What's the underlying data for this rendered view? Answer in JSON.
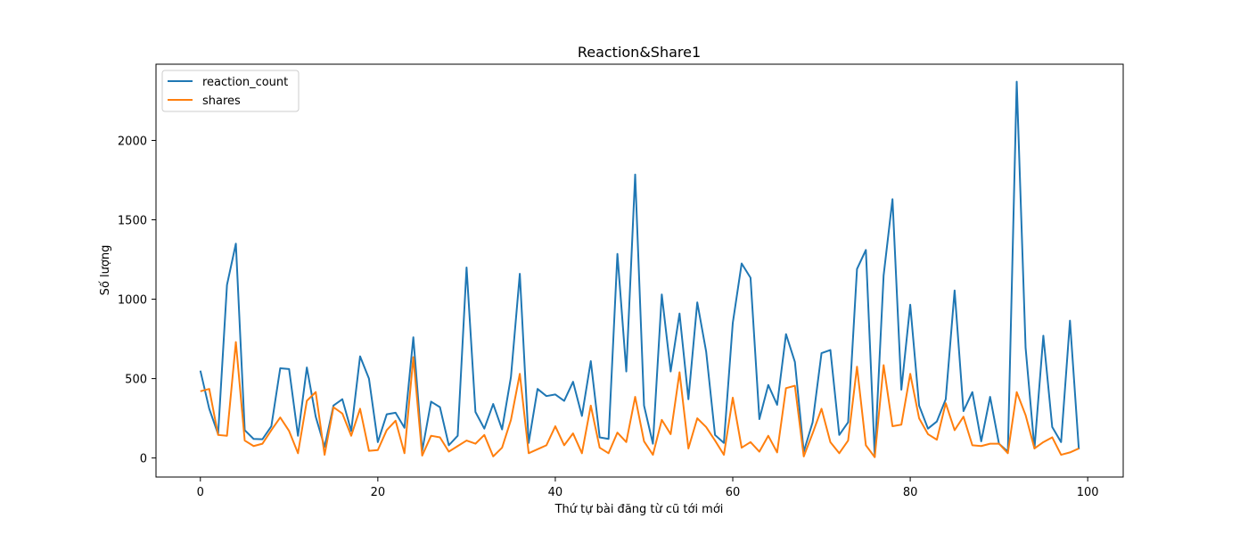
{
  "chart_data": {
    "type": "line",
    "title": "Reaction&Share1",
    "xlabel": "Thứ tự bài đăng từ cũ tới mới",
    "ylabel": "Số lượng",
    "xlim": [
      -5,
      104
    ],
    "ylim": [
      -120,
      2480
    ],
    "xticks": [
      0,
      20,
      40,
      60,
      80,
      100
    ],
    "yticks": [
      0,
      500,
      1000,
      1500,
      2000
    ],
    "grid": false,
    "legend_position": "top-left",
    "x": [
      0,
      1,
      2,
      3,
      4,
      5,
      6,
      7,
      8,
      9,
      10,
      11,
      12,
      13,
      14,
      15,
      16,
      17,
      18,
      19,
      20,
      21,
      22,
      23,
      24,
      25,
      26,
      27,
      28,
      29,
      30,
      31,
      32,
      33,
      34,
      35,
      36,
      37,
      38,
      39,
      40,
      41,
      42,
      43,
      44,
      45,
      46,
      47,
      48,
      49,
      50,
      51,
      52,
      53,
      54,
      55,
      56,
      57,
      58,
      59,
      60,
      61,
      62,
      63,
      64,
      65,
      66,
      67,
      68,
      69,
      70,
      71,
      72,
      73,
      74,
      75,
      76,
      77,
      78,
      79,
      80,
      81,
      82,
      83,
      84,
      85,
      86,
      87,
      88,
      89,
      90,
      91,
      92,
      93,
      94,
      95,
      96,
      97,
      98,
      99
    ],
    "series": [
      {
        "name": "reaction_count",
        "color": "#1f77b4",
        "values": [
          550,
          310,
          150,
          1090,
          1350,
          175,
          120,
          118,
          200,
          565,
          560,
          140,
          570,
          260,
          70,
          330,
          370,
          170,
          640,
          500,
          100,
          275,
          285,
          190,
          760,
          45,
          355,
          320,
          80,
          140,
          1200,
          290,
          185,
          340,
          180,
          510,
          1160,
          95,
          435,
          390,
          400,
          360,
          480,
          265,
          610,
          130,
          120,
          1285,
          545,
          1785,
          330,
          90,
          1030,
          545,
          910,
          370,
          980,
          670,
          145,
          95,
          850,
          1225,
          1135,
          245,
          460,
          335,
          780,
          605,
          40,
          225,
          660,
          680,
          145,
          225,
          1190,
          1310,
          10,
          1150,
          1630,
          430,
          965,
          330,
          185,
          230,
          370,
          1055,
          295,
          415,
          105,
          385,
          90,
          40,
          2370,
          695,
          60,
          770,
          195,
          100,
          865,
          55
        ]
      },
      {
        "name": "shares",
        "color": "#ff7f0e",
        "values": [
          420,
          435,
          145,
          140,
          730,
          110,
          75,
          90,
          175,
          255,
          170,
          30,
          360,
          415,
          20,
          320,
          280,
          140,
          310,
          45,
          50,
          175,
          235,
          30,
          635,
          15,
          140,
          130,
          40,
          75,
          110,
          90,
          145,
          10,
          65,
          240,
          530,
          30,
          55,
          80,
          200,
          80,
          155,
          30,
          330,
          65,
          30,
          160,
          100,
          385,
          105,
          20,
          240,
          150,
          540,
          60,
          250,
          195,
          110,
          20,
          380,
          65,
          100,
          40,
          140,
          35,
          440,
          455,
          10,
          155,
          310,
          100,
          30,
          110,
          575,
          80,
          5,
          585,
          200,
          210,
          530,
          250,
          150,
          115,
          345,
          175,
          260,
          80,
          75,
          90,
          90,
          30,
          415,
          270,
          60,
          100,
          130,
          20,
          35,
          60
        ]
      }
    ]
  }
}
